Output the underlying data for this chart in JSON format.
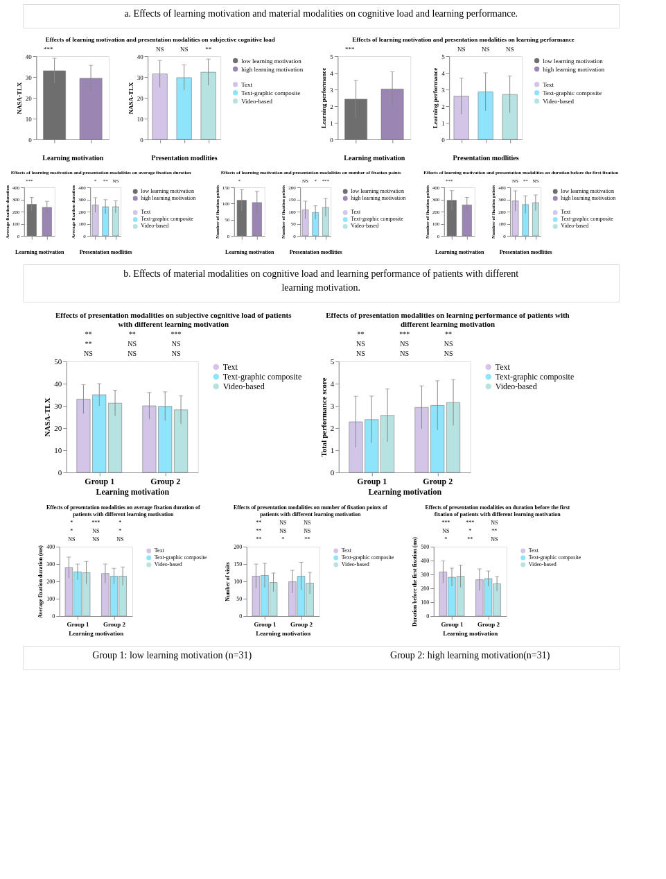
{
  "chart_data": [
    {
      "type": "other",
      "title": "a. Effects of learning motivation and material modalities on cognitive load and learning performance."
    },
    {
      "type": "bar",
      "title": "Effects of learning motivation and presentation modalities on subjective cognitive load",
      "categories": [
        null,
        null
      ],
      "xlabel": "Learning motivation",
      "ylabel": "NASA-TLX",
      "ylim": [
        0,
        40
      ],
      "yticks": [
        0,
        10,
        20,
        30,
        40
      ],
      "legend": "right",
      "annotations": [
        "***"
      ],
      "series": [
        {
          "name": "low learning motivation",
          "color": "#6e6e6e",
          "values": [
            33,
            null
          ],
          "errors": [
            6,
            null
          ]
        },
        {
          "name": "high learning motivation",
          "color": "#9b86b3",
          "values": [
            null,
            29.4
          ],
          "errors": [
            null,
            6.2
          ]
        }
      ]
    },
    {
      "type": "bar",
      "categories": [
        null,
        null,
        null
      ],
      "xlabel": "Presentation modlities",
      "ylabel": "NASA-TLX",
      "ylim": [
        0,
        40
      ],
      "yticks": [
        0,
        10,
        20,
        30,
        40
      ],
      "legend": "right",
      "annotations": [
        "NS",
        "NS",
        "**"
      ],
      "series": [
        {
          "name": "Text",
          "color": "#d2c5e8",
          "values": [
            31.5,
            null,
            null
          ],
          "errors": [
            6.5,
            null,
            null
          ]
        },
        {
          "name": "Text-graphic composite",
          "color": "#8ee4fb",
          "values": [
            null,
            29.7,
            null
          ],
          "errors": [
            null,
            6.1,
            null
          ]
        },
        {
          "name": "Video-based",
          "color": "#b6e3e1",
          "values": [
            null,
            null,
            32.3
          ],
          "errors": [
            null,
            null,
            6.3
          ]
        }
      ]
    },
    {
      "type": "bar",
      "title": "Effects of learning motivation and presentation modalities on learning performance",
      "categories": [
        null,
        null
      ],
      "xlabel": "Learning motivation",
      "ylabel": "Learning performance",
      "ylim": [
        0,
        5
      ],
      "yticks": [
        0,
        1,
        2,
        3,
        4,
        5
      ],
      "legend": "right",
      "annotations": [
        "***"
      ],
      "series": [
        {
          "name": "low learning motivation",
          "color": "#6e6e6e",
          "values": [
            2.42,
            null
          ],
          "errors": [
            1.12,
            null
          ]
        },
        {
          "name": "high learning motivation",
          "color": "#9b86b3",
          "values": [
            null,
            3.03
          ],
          "errors": [
            null,
            1.03
          ]
        }
      ]
    },
    {
      "type": "bar",
      "categories": [
        null,
        null,
        null
      ],
      "xlabel": "Presentation modlities",
      "ylabel": "Learning performance",
      "ylim": [
        0,
        5
      ],
      "yticks": [
        0,
        1,
        2,
        3,
        4,
        5
      ],
      "legend": "right",
      "annotations": [
        "NS",
        "NS",
        "NS"
      ],
      "series": [
        {
          "name": "Text",
          "color": "#d2c5e8",
          "values": [
            2.6,
            null,
            null
          ],
          "errors": [
            1.09,
            null,
            null
          ]
        },
        {
          "name": "Text-graphic composite",
          "color": "#8ee4fb",
          "values": [
            null,
            2.86,
            null
          ],
          "errors": [
            null,
            1.14,
            null
          ]
        },
        {
          "name": "Video-based",
          "color": "#b6e3e1",
          "values": [
            null,
            null,
            2.7
          ],
          "errors": [
            null,
            null,
            1.11
          ]
        }
      ]
    },
    {
      "type": "bar",
      "title": "Effects of learning motivation and presentation modalities on average fixation duration",
      "categories": [
        null,
        null
      ],
      "xlabel": "Learning motivation",
      "ylabel": "Average fixation duration",
      "ylim": [
        0,
        400
      ],
      "yticks": [
        0,
        100,
        200,
        300,
        400
      ],
      "legend": "right",
      "annotations": [
        "***"
      ],
      "series": [
        {
          "name": "low learning motivation",
          "color": "#6e6e6e",
          "values": [
            260,
            null
          ],
          "errors": [
            57,
            null
          ]
        },
        {
          "name": "high learning motivation",
          "color": "#9b86b3",
          "values": [
            null,
            235
          ],
          "errors": [
            null,
            50
          ]
        }
      ]
    },
    {
      "type": "bar",
      "categories": [
        null,
        null,
        null
      ],
      "xlabel": "Presentation modlities",
      "ylabel": "Average fixation duration",
      "ylim": [
        0,
        400
      ],
      "yticks": [
        0,
        100,
        200,
        300,
        400
      ],
      "legend": "right",
      "annotations": [
        "*",
        "**",
        "NS"
      ],
      "series": [
        {
          "name": "Text",
          "color": "#d2c5e8",
          "values": [
            255,
            null,
            null
          ],
          "errors": [
            60,
            null,
            null
          ]
        },
        {
          "name": "Text-graphic composite",
          "color": "#8ee4fb",
          "values": [
            null,
            240,
            null
          ],
          "errors": [
            null,
            58,
            null
          ]
        },
        {
          "name": "Video-based",
          "color": "#b6e3e1",
          "values": [
            null,
            null,
            240
          ],
          "errors": [
            null,
            null,
            50
          ]
        }
      ]
    },
    {
      "type": "bar",
      "title": "Effects of learning motivation and presentation modalities on number of fixation points",
      "categories": [
        null,
        null
      ],
      "xlabel": "Learning motivation",
      "ylabel": "Number of fixation points",
      "ylim": [
        0,
        150
      ],
      "yticks": [
        0,
        50,
        100,
        150
      ],
      "legend": "right",
      "annotations": [
        "*"
      ],
      "series": [
        {
          "name": "low learning motivation",
          "color": "#6e6e6e",
          "values": [
            110,
            null
          ],
          "errors": [
            33,
            null
          ]
        },
        {
          "name": "high learning motivation",
          "color": "#9b86b3",
          "values": [
            null,
            103
          ],
          "errors": [
            null,
            35
          ]
        }
      ]
    },
    {
      "type": "bar",
      "categories": [
        null,
        null,
        null
      ],
      "xlabel": "Presentation modlities",
      "ylabel": "Number of fixation points",
      "ylim": [
        0,
        200
      ],
      "yticks": [
        0,
        50,
        100,
        150,
        200
      ],
      "legend": "right",
      "annotations": [
        "NS",
        "*",
        "***"
      ],
      "series": [
        {
          "name": "Text",
          "color": "#d2c5e8",
          "values": [
            107,
            null,
            null
          ],
          "errors": [
            36,
            null,
            null
          ]
        },
        {
          "name": "Text-graphic composite",
          "color": "#8ee4fb",
          "values": [
            null,
            96,
            null
          ],
          "errors": [
            null,
            28,
            null
          ]
        },
        {
          "name": "Video-based",
          "color": "#b6e3e1",
          "values": [
            null,
            null,
            117
          ],
          "errors": [
            null,
            null,
            37
          ]
        }
      ]
    },
    {
      "type": "bar",
      "title": "Effects of learning motivation and presentation modalities on duration before the first fixation",
      "categories": [
        null,
        null
      ],
      "xlabel": "Learning motivation",
      "ylabel": "Number of fixation points",
      "ylim": [
        0,
        400
      ],
      "yticks": [
        0,
        100,
        200,
        300,
        400
      ],
      "legend": "right",
      "annotations": [
        "***"
      ],
      "series": [
        {
          "name": "low learning motivation",
          "color": "#6e6e6e",
          "values": [
            293,
            null
          ],
          "errors": [
            80,
            null
          ]
        },
        {
          "name": "high learning motivation",
          "color": "#9b86b3",
          "values": [
            null,
            255
          ],
          "errors": [
            null,
            62
          ]
        }
      ]
    },
    {
      "type": "bar",
      "categories": [
        null,
        null,
        null
      ],
      "xlabel": "Presentation modlities",
      "ylabel": "Number of fixation points",
      "ylim": [
        0,
        400
      ],
      "yticks": [
        0,
        100,
        200,
        300,
        400
      ],
      "legend": "right",
      "annotations": [
        "NS",
        "**",
        "NS"
      ],
      "series": [
        {
          "name": "Text",
          "color": "#d2c5e8",
          "values": [
            288,
            null,
            null
          ],
          "errors": [
            83,
            null,
            null
          ]
        },
        {
          "name": "Text-graphic composite",
          "color": "#8ee4fb",
          "values": [
            null,
            258,
            null
          ],
          "errors": [
            null,
            72,
            null
          ]
        },
        {
          "name": "Video-based",
          "color": "#b6e3e1",
          "values": [
            null,
            null,
            273
          ],
          "errors": [
            null,
            null,
            64
          ]
        }
      ]
    },
    {
      "type": "other",
      "title": "b. Effects of material modalities on cognitive load and learning performance of patients with different learning motivation."
    },
    {
      "type": "bar",
      "title": "Effects of presentation modalities on subjective cognitive load of patients with different learning motivation",
      "categories": [
        "Group 1",
        "Group 2"
      ],
      "xlabel": "Learning motivation",
      "ylabel": "NASA-TLX",
      "ylim": [
        0,
        50
      ],
      "yticks": [
        0,
        10,
        20,
        30,
        40,
        50
      ],
      "legend": "right",
      "annotations": [
        "**",
        "**",
        "***",
        "**",
        "NS",
        "NS",
        "NS",
        "NS",
        "NS"
      ],
      "series": [
        {
          "name": "Text",
          "color": "#d2c5e8",
          "values": [
            33,
            30
          ],
          "errors": [
            6.5,
            6
          ]
        },
        {
          "name": "Text-graphic composite",
          "color": "#8ee4fb",
          "values": [
            35,
            29.8
          ],
          "errors": [
            5,
            6.5
          ]
        },
        {
          "name": "Video-based",
          "color": "#b6e3e1",
          "values": [
            31.2,
            28.2
          ],
          "errors": [
            5.8,
            6.3
          ]
        }
      ]
    },
    {
      "type": "bar",
      "title": "Effects of presentation modalities on learning performance of patients with different learning motivation",
      "categories": [
        "Group 1",
        "Group 2"
      ],
      "xlabel": "Learning motivation",
      "ylabel": "Total performance score",
      "ylim": [
        0,
        5
      ],
      "yticks": [
        0,
        1,
        2,
        3,
        4,
        5
      ],
      "legend": "right",
      "annotations": [
        "**",
        "***",
        "**",
        "NS",
        "NS",
        "NS",
        "NS",
        "NS",
        "NS"
      ],
      "series": [
        {
          "name": "Text",
          "color": "#d2c5e8",
          "values": [
            2.28,
            2.93
          ],
          "errors": [
            1.15,
            0.97
          ]
        },
        {
          "name": "Text-graphic composite",
          "color": "#8ee4fb",
          "values": [
            2.38,
            3.02
          ],
          "errors": [
            1.06,
            1.11
          ]
        },
        {
          "name": "Video-based",
          "color": "#b6e3e1",
          "values": [
            2.57,
            3.15
          ],
          "errors": [
            1.19,
            1.03
          ]
        }
      ]
    },
    {
      "type": "bar",
      "title": "Effects of presentation modalities on average fixation duration of patients with different learning motivation",
      "categories": [
        "Group 1",
        "Group 2"
      ],
      "xlabel": "Learning motivation",
      "ylabel": "Average fixation duration (ms)",
      "ylim": [
        0,
        400
      ],
      "yticks": [
        0,
        100,
        200,
        300,
        400
      ],
      "legend": "right",
      "annotations": [
        "*",
        "***",
        "*",
        "*",
        "NS",
        "*",
        "NS",
        "NS",
        "NS"
      ],
      "series": [
        {
          "name": "Text",
          "color": "#d2c5e8",
          "values": [
            280,
            245
          ],
          "errors": [
            60,
            55
          ]
        },
        {
          "name": "Text-graphic composite",
          "color": "#8ee4fb",
          "values": [
            255,
            230
          ],
          "errors": [
            45,
            45
          ]
        },
        {
          "name": "Video-based",
          "color": "#b6e3e1",
          "values": [
            250,
            230
          ],
          "errors": [
            65,
            53
          ]
        }
      ]
    },
    {
      "type": "bar",
      "title": "Effects of presentation modalities on number of fixation points of patients with different learning motivation",
      "categories": [
        "Group 1",
        "Group 2"
      ],
      "xlabel": "Learning motivation",
      "ylabel": "Number of visits",
      "ylim": [
        0,
        200
      ],
      "yticks": [
        0,
        50,
        100,
        150,
        200
      ],
      "legend": "right",
      "annotations": [
        "**",
        "NS",
        "NS",
        "**",
        "NS",
        "NS",
        "**",
        "*",
        "**"
      ],
      "series": [
        {
          "name": "Text",
          "color": "#d2c5e8",
          "values": [
            115,
            99
          ],
          "errors": [
            35,
            33
          ]
        },
        {
          "name": "Text-graphic composite",
          "color": "#8ee4fb",
          "values": [
            117,
            115
          ],
          "errors": [
            35,
            40
          ]
        },
        {
          "name": "Video-based",
          "color": "#b6e3e1",
          "values": [
            97,
            95
          ],
          "errors": [
            27,
            31
          ]
        }
      ]
    },
    {
      "type": "bar",
      "title": "Effects of presentation modalities on duration before the first fixation of patients with different learning motivation",
      "categories": [
        "Group 1",
        "Group 2"
      ],
      "xlabel": "Learning motivation",
      "ylabel": "Duration before the first fixation (ms)",
      "ylim": [
        0,
        500
      ],
      "yticks": [
        0,
        100,
        200,
        300,
        400,
        500
      ],
      "legend": "right",
      "annotations": [
        "***",
        "***",
        "NS",
        "NS",
        "*",
        "**",
        "*",
        "**",
        "NS"
      ],
      "series": [
        {
          "name": "Text",
          "color": "#d2c5e8",
          "values": [
            318,
            262
          ],
          "errors": [
            80,
            78
          ]
        },
        {
          "name": "Text-graphic composite",
          "color": "#8ee4fb",
          "values": [
            280,
            270
          ],
          "errors": [
            65,
            55
          ]
        },
        {
          "name": "Video-based",
          "color": "#b6e3e1",
          "values": [
            287,
            233
          ],
          "errors": [
            80,
            52
          ]
        }
      ]
    },
    {
      "type": "other",
      "annotations": [
        "Group 1: low learning motivation (n=31)",
        "Group 2: high learning motivation(n=31)"
      ]
    }
  ]
}
